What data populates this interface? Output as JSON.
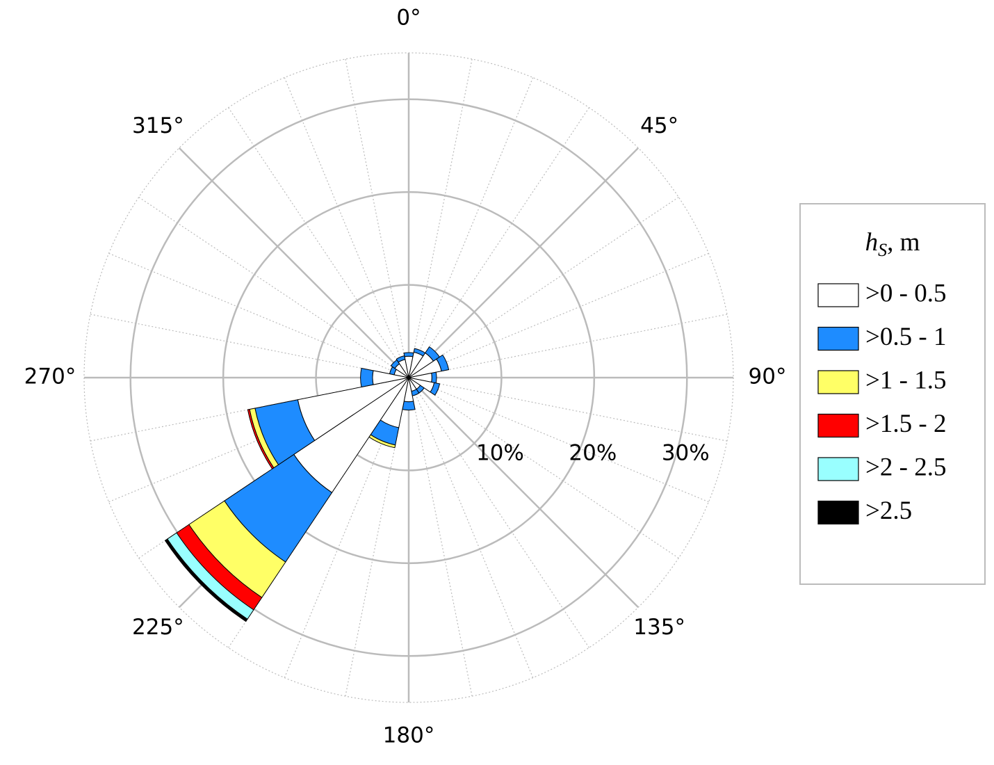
{
  "chart_data": {
    "type": "rose",
    "x": [
      0,
      22.5,
      45,
      67.5,
      90,
      112.5,
      135,
      157.5,
      180,
      202.5,
      225,
      247.5,
      270,
      292.5,
      315,
      337.5
    ],
    "series": [
      {
        "name": ">0 - 0.5",
        "color": "#ffffff",
        "values": [
          2.3,
          2.8,
          3.2,
          3.6,
          2.5,
          2.8,
          1.5,
          1.5,
          2.6,
          5.5,
          14.9,
          12.2,
          3.9,
          1.6,
          1.8,
          2.0
        ]
      },
      {
        "name": ">0.5 - 1",
        "color": "#1e8cff",
        "values": [
          0.4,
          0.4,
          0.8,
          0.8,
          0.5,
          0.6,
          0.5,
          0.5,
          0.9,
          1.9,
          9.0,
          4.7,
          1.3,
          0.5,
          0.5,
          0.4
        ]
      },
      {
        "name": ">1 - 1.5",
        "color": "#ffff66",
        "values": [
          0,
          0,
          0,
          0,
          0,
          0,
          0,
          0,
          0,
          0.3,
          4.6,
          0.6,
          0,
          0,
          0,
          0
        ]
      },
      {
        "name": ">1.5 - 2",
        "color": "#ff0000",
        "values": [
          0,
          0,
          0,
          0,
          0,
          0,
          0,
          0,
          0,
          0,
          1.6,
          0.2,
          0,
          0,
          0,
          0
        ]
      },
      {
        "name": ">2 - 2.5",
        "color": "#99ffff",
        "values": [
          0,
          0,
          0,
          0,
          0,
          0,
          0,
          0,
          0,
          0,
          1.2,
          0,
          0,
          0,
          0,
          0
        ]
      },
      {
        "name": ">2.5",
        "color": "#000000",
        "values": [
          0,
          0,
          0,
          0,
          0,
          0,
          0,
          0,
          0,
          0,
          0.3,
          0,
          0,
          0,
          0,
          0
        ]
      }
    ],
    "rlim": [
      0,
      35
    ],
    "rticks": [
      {
        "value": 10,
        "label": "10%"
      },
      {
        "value": 20,
        "label": "20%"
      },
      {
        "value": 30,
        "label": "30%"
      }
    ],
    "angle_ticks": [
      {
        "value": 0,
        "label": "0°"
      },
      {
        "value": 45,
        "label": "45°"
      },
      {
        "value": 90,
        "label": "90°"
      },
      {
        "value": 135,
        "label": "135°"
      },
      {
        "value": 180,
        "label": "180°"
      },
      {
        "value": 225,
        "label": "225°"
      },
      {
        "value": 270,
        "label": "270°"
      },
      {
        "value": 315,
        "label": "315°"
      }
    ],
    "legend_title": {
      "symbol": "h",
      "subscript": "S",
      "unit": ", m"
    },
    "legend": "right",
    "grid": true
  }
}
